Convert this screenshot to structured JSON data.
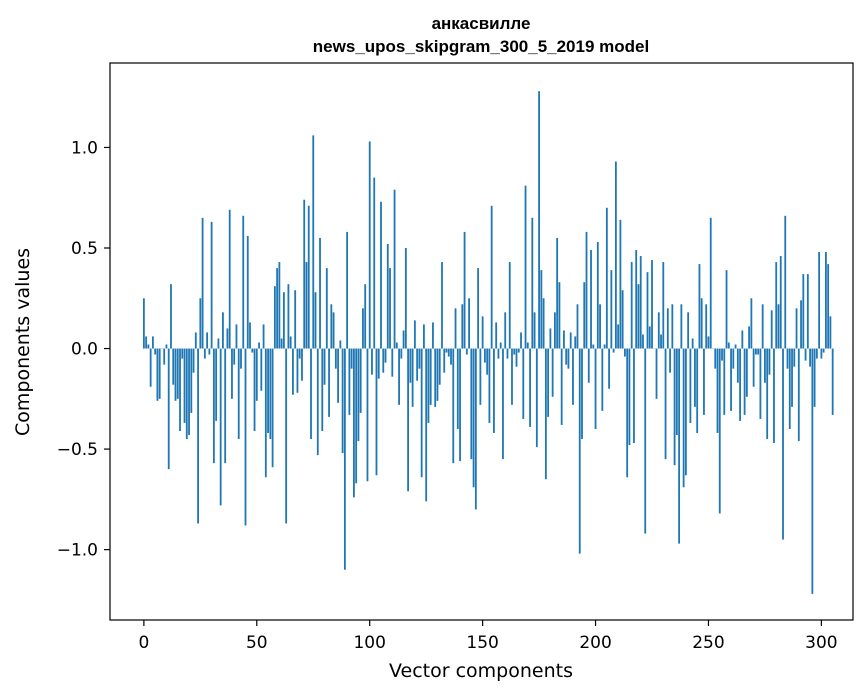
{
  "chart_data": {
    "type": "bar",
    "title": "анкасвилле",
    "subtitle": "news_upos_skipgram_300_5_2019 model",
    "xlabel": "Vector components",
    "ylabel": "Components values",
    "xlim": [
      -15,
      314
    ],
    "ylim": [
      -1.35,
      1.42
    ],
    "xticks": [
      0,
      50,
      100,
      150,
      200,
      250,
      300
    ],
    "xtick_labels": [
      "0",
      "50",
      "100",
      "150",
      "200",
      "250",
      "300"
    ],
    "yticks": [
      -1.0,
      -0.5,
      0.0,
      0.5,
      1.0
    ],
    "ytick_labels": [
      "−1.0",
      "−0.5",
      "0.0",
      "0.5",
      "1.0"
    ],
    "grid": false,
    "bar_color": "#1f77b4",
    "x_start": 0,
    "values": [
      0.25,
      0.06,
      0.02,
      -0.19,
      0.06,
      -0.03,
      -0.26,
      -0.25,
      0.0,
      -0.08,
      0.02,
      -0.6,
      0.32,
      -0.18,
      -0.26,
      -0.25,
      -0.41,
      -0.05,
      -0.37,
      -0.45,
      -0.43,
      -0.32,
      -0.12,
      0.08,
      -0.87,
      0.25,
      0.65,
      -0.05,
      0.08,
      -0.03,
      0.63,
      -0.57,
      -0.36,
      0.05,
      -0.78,
      0.18,
      -0.57,
      0.1,
      0.69,
      -0.25,
      -0.08,
      0.12,
      -0.45,
      -0.1,
      0.66,
      -0.88,
      0.56,
      0.13,
      -0.02,
      -0.41,
      -0.26,
      0.03,
      -0.21,
      0.12,
      -0.64,
      -0.42,
      -0.45,
      -0.59,
      0.31,
      0.4,
      0.43,
      0.05,
      0.28,
      -0.87,
      0.32,
      0.06,
      -0.23,
      0.29,
      -0.22,
      -0.05,
      -0.16,
      0.74,
      0.43,
      0.71,
      -0.45,
      1.06,
      0.28,
      -0.53,
      0.55,
      -0.41,
      -0.18,
      0.4,
      -0.34,
      0.22,
      0.18,
      -0.1,
      -0.27,
      0.04,
      -0.52,
      -1.1,
      0.58,
      -0.33,
      -0.1,
      -0.74,
      -0.67,
      -0.46,
      -0.32,
      0.2,
      0.32,
      -0.66,
      1.03,
      -0.13,
      0.85,
      -0.63,
      -0.15,
      0.73,
      -0.12,
      -0.07,
      0.52,
      0.4,
      -0.14,
      0.79,
      0.03,
      -0.28,
      -0.05,
      0.09,
      0.5,
      -0.71,
      -0.17,
      -0.29,
      0.14,
      -0.16,
      -0.1,
      -0.64,
      0.12,
      -0.76,
      -0.37,
      -0.28,
      0.13,
      -0.29,
      -0.26,
      -0.18,
      0.43,
      -0.12,
      -0.02,
      -0.04,
      -0.08,
      -0.57,
      0.2,
      -0.4,
      -0.56,
      0.22,
      0.58,
      -0.03,
      0.25,
      -0.55,
      -0.69,
      -0.8,
      0.4,
      -0.28,
      0.16,
      -0.07,
      -0.13,
      -0.37,
      0.71,
      -0.42,
      0.13,
      -0.05,
      0.03,
      -0.55,
      0.18,
      -0.05,
      0.43,
      -0.28,
      -0.03,
      -0.09,
      -0.02,
      0.08,
      -0.35,
      0.81,
      0.03,
      -0.39,
      0.65,
      0.18,
      -0.49,
      1.28,
      0.39,
      0.25,
      -0.65,
      -0.34,
      0.1,
      -0.24,
      0.18,
      0.55,
      0.33,
      -0.38,
      0.09,
      -0.08,
      -0.1,
      0.08,
      -0.28,
      0.06,
      0.22,
      -1.02,
      -0.45,
      0.33,
      0.58,
      -0.17,
      0.49,
      0.02,
      -0.4,
      0.53,
      0.22,
      -0.31,
      0.02,
      0.7,
      -0.2,
      0.39,
      -0.02,
      0.93,
      0.12,
      0.64,
      0.29,
      -0.04,
      -0.64,
      -0.48,
      0.43,
      -0.47,
      0.49,
      0.32,
      0.46,
      0.07,
      -0.92,
      0.38,
      0.11,
      0.44,
      0.0,
      -0.25,
      0.18,
      0.07,
      0.43,
      -0.55,
      0.2,
      -0.12,
      0.22,
      -0.58,
      -0.43,
      -0.97,
      0.22,
      -0.69,
      -0.63,
      0.18,
      -0.37,
      0.05,
      -0.29,
      -0.42,
      0.42,
      0.25,
      -0.33,
      0.22,
      0.06,
      0.65,
      0.0,
      -0.1,
      -0.42,
      -0.82,
      -0.06,
      -0.33,
      0.39,
      0.03,
      -0.31,
      -0.1,
      0.02,
      -0.17,
      -0.36,
      0.09,
      -0.33,
      -0.24,
      0.11,
      0.25,
      -0.19,
      -0.03,
      -0.03,
      -0.35,
      0.22,
      -0.17,
      -0.45,
      -0.13,
      0.19,
      -0.47,
      0.43,
      0.22,
      0.46,
      -0.95,
      0.66,
      -0.1,
      -0.4,
      -0.29,
      -0.09,
      0.2,
      -0.46,
      0.24,
      0.37,
      -0.06,
      0.37,
      -0.09,
      -1.22,
      -0.29,
      -0.05,
      0.48,
      -0.05,
      -0.02,
      0.48,
      0.42,
      0.16,
      -0.33
    ]
  }
}
